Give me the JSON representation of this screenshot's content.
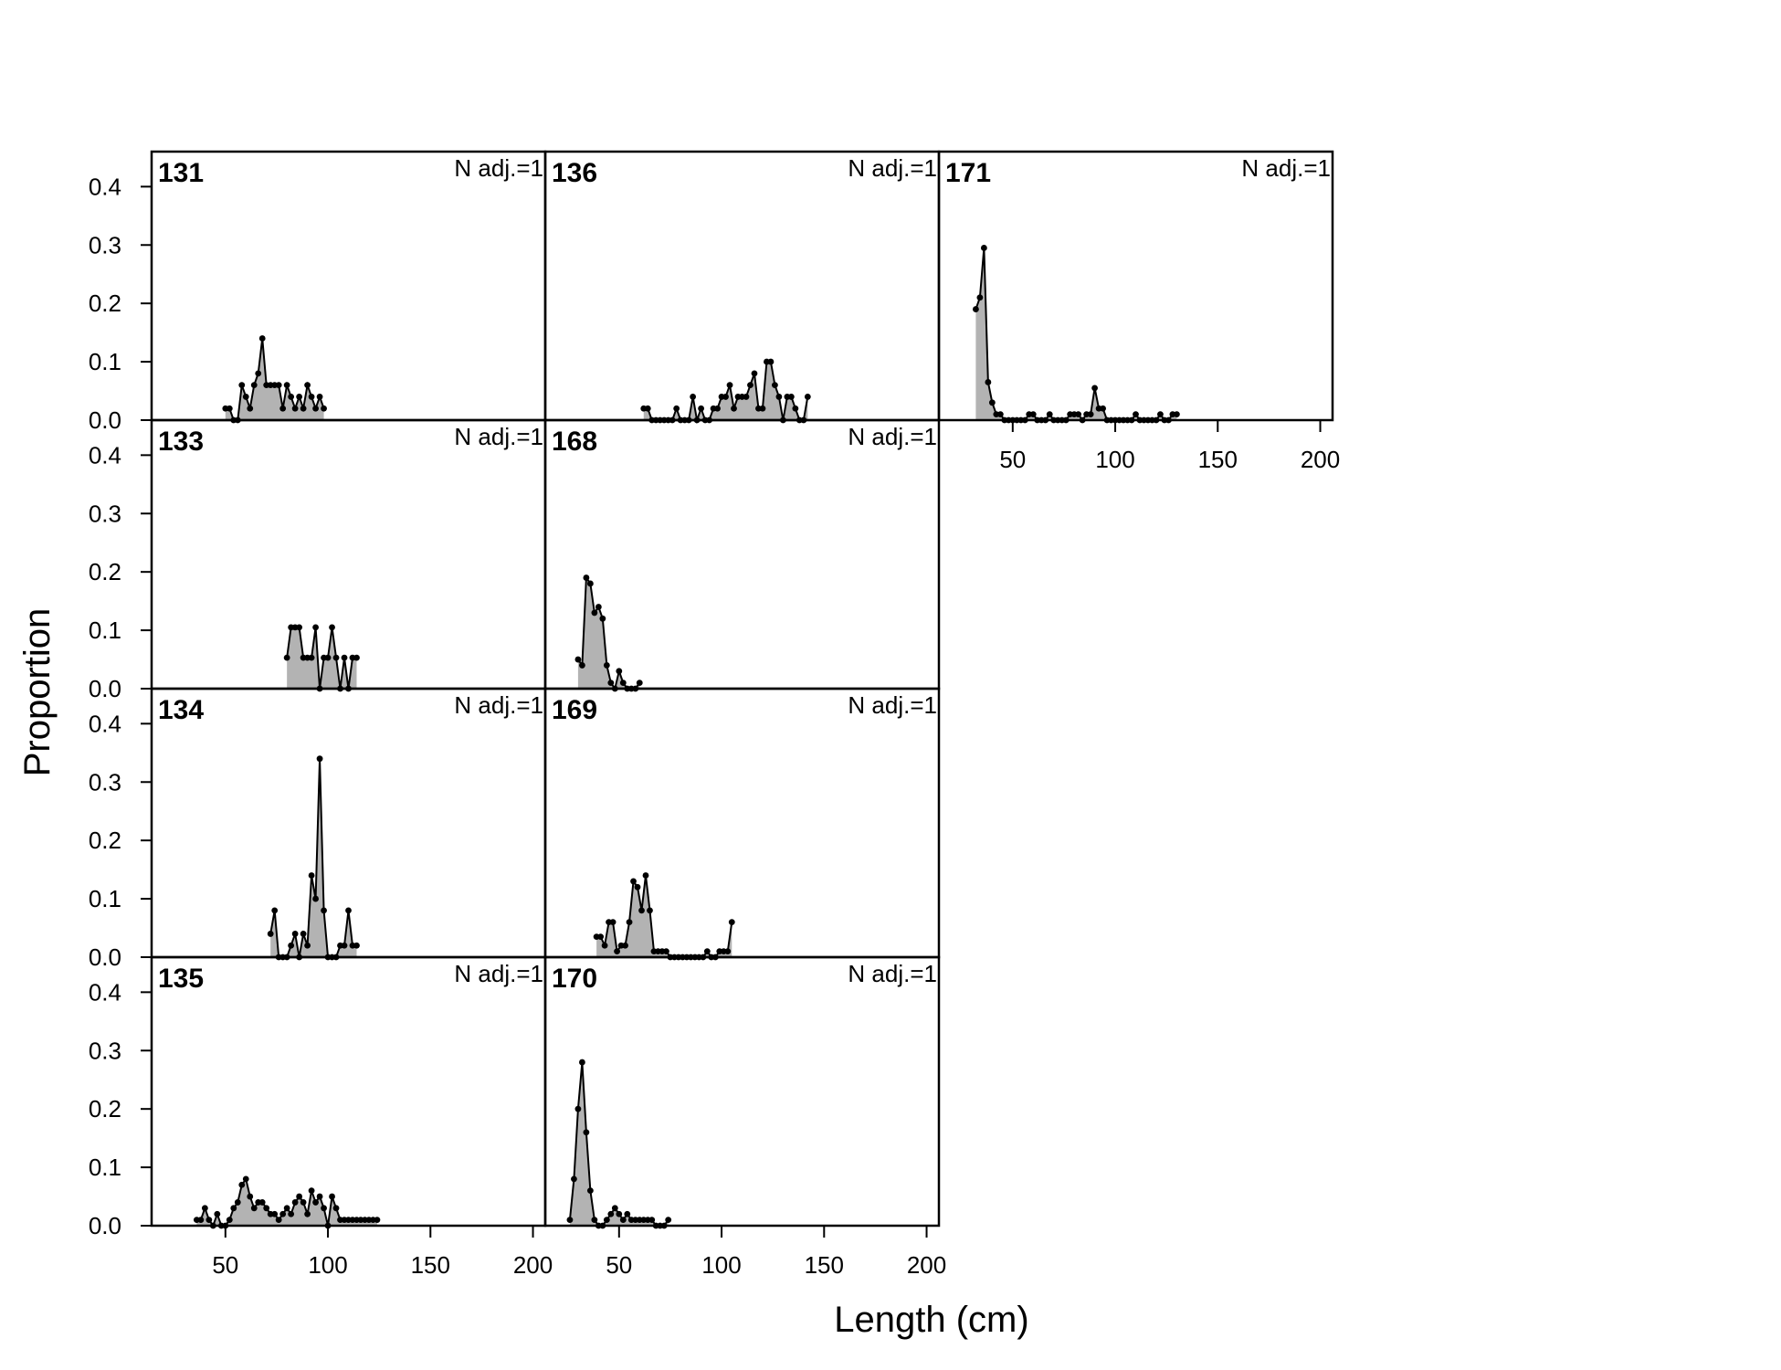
{
  "figure": {
    "xlabel": "Length (cm)",
    "ylabel": "Proportion",
    "colors": {
      "fill": "#b3b3b3",
      "line": "#000000",
      "point": "#000000",
      "frame": "#000000"
    }
  },
  "chart_data": {
    "type": "area",
    "xlim": [
      14,
      206
    ],
    "ylim": [
      0,
      0.46
    ],
    "x_ticks": [
      50,
      100,
      150,
      200
    ],
    "y_ticks": [
      "0.0",
      "0.1",
      "0.2",
      "0.3",
      "0.4"
    ],
    "panels": [
      {
        "title": "131",
        "annotation": "N adj.=1",
        "col": 0,
        "row": 0,
        "points": [
          [
            50,
            0.02
          ],
          [
            52,
            0.02
          ],
          [
            54,
            0.0
          ],
          [
            56,
            0.0
          ],
          [
            58,
            0.06
          ],
          [
            60,
            0.04
          ],
          [
            62,
            0.02
          ],
          [
            64,
            0.06
          ],
          [
            66,
            0.08
          ],
          [
            68,
            0.14
          ],
          [
            70,
            0.06
          ],
          [
            72,
            0.06
          ],
          [
            74,
            0.06
          ],
          [
            76,
            0.06
          ],
          [
            78,
            0.02
          ],
          [
            80,
            0.06
          ],
          [
            82,
            0.04
          ],
          [
            84,
            0.02
          ],
          [
            86,
            0.04
          ],
          [
            88,
            0.02
          ],
          [
            90,
            0.06
          ],
          [
            92,
            0.04
          ],
          [
            94,
            0.02
          ],
          [
            96,
            0.04
          ],
          [
            98,
            0.02
          ]
        ]
      },
      {
        "title": "133",
        "annotation": "N adj.=1",
        "col": 0,
        "row": 1,
        "points": [
          [
            80,
            0.053
          ],
          [
            82,
            0.105
          ],
          [
            84,
            0.105
          ],
          [
            86,
            0.105
          ],
          [
            88,
            0.053
          ],
          [
            90,
            0.053
          ],
          [
            92,
            0.053
          ],
          [
            94,
            0.105
          ],
          [
            96,
            0.0
          ],
          [
            98,
            0.053
          ],
          [
            100,
            0.053
          ],
          [
            102,
            0.105
          ],
          [
            104,
            0.053
          ],
          [
            106,
            0.0
          ],
          [
            108,
            0.053
          ],
          [
            110,
            0.0
          ],
          [
            112,
            0.053
          ],
          [
            114,
            0.053
          ]
        ]
      },
      {
        "title": "134",
        "annotation": "N adj.=1",
        "col": 0,
        "row": 2,
        "points": [
          [
            72,
            0.04
          ],
          [
            74,
            0.08
          ],
          [
            76,
            0.0
          ],
          [
            78,
            0.0
          ],
          [
            80,
            0.0
          ],
          [
            82,
            0.02
          ],
          [
            84,
            0.04
          ],
          [
            86,
            0.0
          ],
          [
            88,
            0.04
          ],
          [
            90,
            0.02
          ],
          [
            92,
            0.14
          ],
          [
            94,
            0.1
          ],
          [
            96,
            0.34
          ],
          [
            98,
            0.08
          ],
          [
            100,
            0.0
          ],
          [
            102,
            0.0
          ],
          [
            104,
            0.0
          ],
          [
            106,
            0.02
          ],
          [
            108,
            0.02
          ],
          [
            110,
            0.08
          ],
          [
            112,
            0.02
          ],
          [
            114,
            0.02
          ]
        ]
      },
      {
        "title": "135",
        "annotation": "N adj.=1",
        "col": 0,
        "row": 3,
        "points": [
          [
            36,
            0.01
          ],
          [
            38,
            0.01
          ],
          [
            40,
            0.03
          ],
          [
            42,
            0.01
          ],
          [
            44,
            0.0
          ],
          [
            46,
            0.02
          ],
          [
            48,
            0.0
          ],
          [
            50,
            0.0
          ],
          [
            52,
            0.01
          ],
          [
            54,
            0.03
          ],
          [
            56,
            0.04
          ],
          [
            58,
            0.07
          ],
          [
            60,
            0.08
          ],
          [
            62,
            0.05
          ],
          [
            64,
            0.03
          ],
          [
            66,
            0.04
          ],
          [
            68,
            0.04
          ],
          [
            70,
            0.03
          ],
          [
            72,
            0.02
          ],
          [
            74,
            0.02
          ],
          [
            76,
            0.01
          ],
          [
            78,
            0.02
          ],
          [
            80,
            0.03
          ],
          [
            82,
            0.02
          ],
          [
            84,
            0.04
          ],
          [
            86,
            0.05
          ],
          [
            88,
            0.04
          ],
          [
            90,
            0.02
          ],
          [
            92,
            0.06
          ],
          [
            94,
            0.04
          ],
          [
            96,
            0.05
          ],
          [
            98,
            0.03
          ],
          [
            100,
            0.0
          ],
          [
            102,
            0.05
          ],
          [
            104,
            0.03
          ],
          [
            106,
            0.01
          ],
          [
            108,
            0.01
          ],
          [
            110,
            0.01
          ],
          [
            112,
            0.01
          ],
          [
            114,
            0.01
          ],
          [
            116,
            0.01
          ],
          [
            118,
            0.01
          ],
          [
            120,
            0.01
          ],
          [
            122,
            0.01
          ],
          [
            124,
            0.01
          ]
        ]
      },
      {
        "title": "136",
        "annotation": "N adj.=1",
        "col": 1,
        "row": 0,
        "points": [
          [
            62,
            0.02
          ],
          [
            64,
            0.02
          ],
          [
            66,
            0.0
          ],
          [
            68,
            0.0
          ],
          [
            70,
            0.0
          ],
          [
            72,
            0.0
          ],
          [
            74,
            0.0
          ],
          [
            76,
            0.0
          ],
          [
            78,
            0.02
          ],
          [
            80,
            0.0
          ],
          [
            82,
            0.0
          ],
          [
            84,
            0.0
          ],
          [
            86,
            0.04
          ],
          [
            88,
            0.0
          ],
          [
            90,
            0.02
          ],
          [
            92,
            0.0
          ],
          [
            94,
            0.0
          ],
          [
            96,
            0.02
          ],
          [
            98,
            0.02
          ],
          [
            100,
            0.04
          ],
          [
            102,
            0.04
          ],
          [
            104,
            0.06
          ],
          [
            106,
            0.02
          ],
          [
            108,
            0.04
          ],
          [
            110,
            0.04
          ],
          [
            112,
            0.04
          ],
          [
            114,
            0.06
          ],
          [
            116,
            0.08
          ],
          [
            118,
            0.02
          ],
          [
            120,
            0.02
          ],
          [
            122,
            0.1
          ],
          [
            124,
            0.1
          ],
          [
            126,
            0.06
          ],
          [
            128,
            0.04
          ],
          [
            130,
            0.0
          ],
          [
            132,
            0.04
          ],
          [
            134,
            0.04
          ],
          [
            136,
            0.02
          ],
          [
            138,
            0.0
          ],
          [
            140,
            0.0
          ],
          [
            142,
            0.04
          ]
        ]
      },
      {
        "title": "168",
        "annotation": "N adj.=1",
        "col": 1,
        "row": 1,
        "points": [
          [
            30,
            0.05
          ],
          [
            32,
            0.04
          ],
          [
            34,
            0.19
          ],
          [
            36,
            0.18
          ],
          [
            38,
            0.13
          ],
          [
            40,
            0.14
          ],
          [
            42,
            0.12
          ],
          [
            44,
            0.04
          ],
          [
            46,
            0.01
          ],
          [
            48,
            0.0
          ],
          [
            50,
            0.03
          ],
          [
            52,
            0.01
          ],
          [
            54,
            0.0
          ],
          [
            56,
            0.0
          ],
          [
            58,
            0.0
          ],
          [
            60,
            0.01
          ]
        ]
      },
      {
        "title": "169",
        "annotation": "N adj.=1",
        "col": 1,
        "row": 2,
        "points": [
          [
            39,
            0.035
          ],
          [
            41,
            0.035
          ],
          [
            43,
            0.02
          ],
          [
            45,
            0.06
          ],
          [
            47,
            0.06
          ],
          [
            49,
            0.01
          ],
          [
            51,
            0.02
          ],
          [
            53,
            0.02
          ],
          [
            55,
            0.06
          ],
          [
            57,
            0.13
          ],
          [
            59,
            0.12
          ],
          [
            61,
            0.08
          ],
          [
            63,
            0.14
          ],
          [
            65,
            0.08
          ],
          [
            67,
            0.01
          ],
          [
            69,
            0.01
          ],
          [
            71,
            0.01
          ],
          [
            73,
            0.01
          ],
          [
            75,
            0.0
          ],
          [
            77,
            0.0
          ],
          [
            79,
            0.0
          ],
          [
            81,
            0.0
          ],
          [
            83,
            0.0
          ],
          [
            85,
            0.0
          ],
          [
            87,
            0.0
          ],
          [
            89,
            0.0
          ],
          [
            91,
            0.0
          ],
          [
            93,
            0.01
          ],
          [
            95,
            0.0
          ],
          [
            97,
            0.0
          ],
          [
            99,
            0.01
          ],
          [
            101,
            0.01
          ],
          [
            103,
            0.01
          ],
          [
            105,
            0.06
          ]
        ]
      },
      {
        "title": "170",
        "annotation": "N adj.=1",
        "col": 1,
        "row": 3,
        "points": [
          [
            26,
            0.01
          ],
          [
            28,
            0.08
          ],
          [
            30,
            0.2
          ],
          [
            32,
            0.28
          ],
          [
            34,
            0.16
          ],
          [
            36,
            0.06
          ],
          [
            38,
            0.01
          ],
          [
            40,
            0.0
          ],
          [
            42,
            0.0
          ],
          [
            44,
            0.01
          ],
          [
            46,
            0.02
          ],
          [
            48,
            0.03
          ],
          [
            50,
            0.02
          ],
          [
            52,
            0.01
          ],
          [
            54,
            0.02
          ],
          [
            56,
            0.01
          ],
          [
            58,
            0.01
          ],
          [
            60,
            0.01
          ],
          [
            62,
            0.01
          ],
          [
            64,
            0.01
          ],
          [
            66,
            0.01
          ],
          [
            68,
            0.0
          ],
          [
            70,
            0.0
          ],
          [
            72,
            0.0
          ],
          [
            74,
            0.01
          ]
        ]
      },
      {
        "title": "171",
        "annotation": "N adj.=1",
        "col": 2,
        "row": 0,
        "points": [
          [
            32,
            0.19
          ],
          [
            34,
            0.21
          ],
          [
            36,
            0.295
          ],
          [
            38,
            0.065
          ],
          [
            40,
            0.03
          ],
          [
            42,
            0.01
          ],
          [
            44,
            0.01
          ],
          [
            46,
            0.0
          ],
          [
            48,
            0.0
          ],
          [
            50,
            0.0
          ],
          [
            52,
            0.0
          ],
          [
            54,
            0.0
          ],
          [
            56,
            0.0
          ],
          [
            58,
            0.01
          ],
          [
            60,
            0.01
          ],
          [
            62,
            0.0
          ],
          [
            64,
            0.0
          ],
          [
            66,
            0.0
          ],
          [
            68,
            0.01
          ],
          [
            70,
            0.0
          ],
          [
            72,
            0.0
          ],
          [
            74,
            0.0
          ],
          [
            76,
            0.0
          ],
          [
            78,
            0.01
          ],
          [
            80,
            0.01
          ],
          [
            82,
            0.01
          ],
          [
            84,
            0.0
          ],
          [
            86,
            0.01
          ],
          [
            88,
            0.01
          ],
          [
            90,
            0.055
          ],
          [
            92,
            0.02
          ],
          [
            94,
            0.02
          ],
          [
            96,
            0.0
          ],
          [
            98,
            0.0
          ],
          [
            100,
            0.0
          ],
          [
            102,
            0.0
          ],
          [
            104,
            0.0
          ],
          [
            106,
            0.0
          ],
          [
            108,
            0.0
          ],
          [
            110,
            0.01
          ],
          [
            112,
            0.0
          ],
          [
            114,
            0.0
          ],
          [
            116,
            0.0
          ],
          [
            118,
            0.0
          ],
          [
            120,
            0.0
          ],
          [
            122,
            0.01
          ],
          [
            124,
            0.0
          ],
          [
            126,
            0.0
          ],
          [
            128,
            0.01
          ],
          [
            130,
            0.01
          ]
        ]
      }
    ]
  }
}
